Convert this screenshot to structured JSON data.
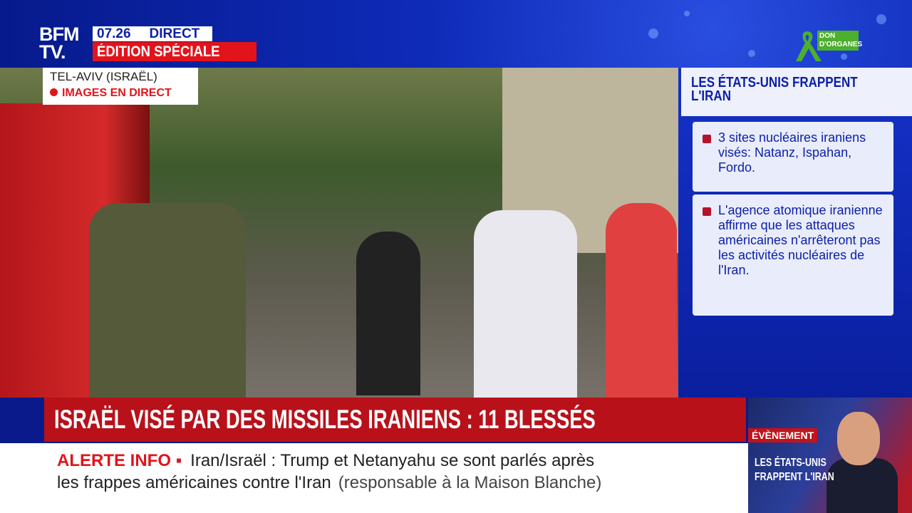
{
  "header": {
    "logo": "BFM TV.",
    "time": "07.26",
    "live_label": "DIRECT",
    "edition": "ÉDITION SPÉCIALE",
    "campaign": "DON D'ORGANES"
  },
  "location": {
    "city": "TEL-AVIV (ISRAËL)",
    "status": "IMAGES EN DIRECT"
  },
  "sidebar": {
    "title": "LES ÉTATS-UNIS FRAPPENT L'IRAN",
    "bullets": [
      "3 sites nucléaires iraniens visés: Natanz, Ispahan, Fordo.",
      "L'agence atomique iranienne affirme que les attaques américaines n'arrêteront pas les activités nucléaires de l'Iran."
    ]
  },
  "headline": "ISRAËL VISÉ PAR DES MISSILES IRANIENS : 11 BLESSÉS",
  "ticker": {
    "label": "ALERTE INFO ▪",
    "line1": "Iran/Israël : Trump et Netanyahu se sont parlés après",
    "line2": "les frappes américaines contre l'Iran",
    "source": "(responsable à la Maison Blanche)"
  },
  "promo": {
    "tag": "ÉVÈNEMENT",
    "title": "LES ÉTATS-UNIS FRAPPENT L'IRAN"
  },
  "colors": {
    "brand_blue": "#0b1fa8",
    "alert_red": "#e2141b",
    "ribbon_green": "#4caf2e"
  }
}
